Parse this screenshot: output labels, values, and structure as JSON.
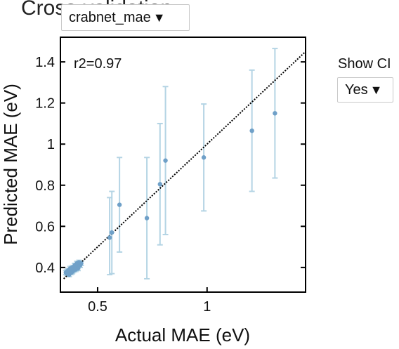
{
  "title": "Cross-validation",
  "metric_select": {
    "value": "crabnet_mae"
  },
  "ci_control": {
    "label": "Show CI",
    "value": "Yes"
  },
  "colors": {
    "points": "#6fa0c8",
    "errorbars": "#b4d4e4",
    "parity": "#000000"
  },
  "chart_data": {
    "type": "scatter",
    "xlabel": "Actual MAE (eV)",
    "ylabel": "Predicted MAE (eV)",
    "annotation": "r2=0.97",
    "xlim": [
      0.33,
      1.45
    ],
    "ylim": [
      0.28,
      1.52
    ],
    "xticks": [
      0.5,
      1
    ],
    "xtick_labels": [
      "0.5",
      "1"
    ],
    "yticks": [
      0.4,
      0.6,
      0.8,
      1.0,
      1.2,
      1.4
    ],
    "ytick_labels": [
      "0.4",
      "0.6",
      "0.8",
      "1",
      "1.2",
      "1.4"
    ],
    "grid": false,
    "parity_line": true,
    "points": [
      {
        "x": 0.555,
        "y": 0.545,
        "lo": 0.365,
        "hi": 0.74
      },
      {
        "x": 0.565,
        "y": 0.57,
        "lo": 0.37,
        "hi": 0.77
      },
      {
        "x": 0.6,
        "y": 0.705,
        "lo": 0.475,
        "hi": 0.935
      },
      {
        "x": 0.725,
        "y": 0.64,
        "lo": 0.345,
        "hi": 0.935
      },
      {
        "x": 0.785,
        "y": 0.805,
        "lo": 0.51,
        "hi": 1.1
      },
      {
        "x": 0.81,
        "y": 0.92,
        "lo": 0.56,
        "hi": 1.28
      },
      {
        "x": 0.985,
        "y": 0.935,
        "lo": 0.675,
        "hi": 1.195
      },
      {
        "x": 1.205,
        "y": 1.065,
        "lo": 0.77,
        "hi": 1.36
      },
      {
        "x": 1.31,
        "y": 1.15,
        "lo": 0.835,
        "hi": 1.465
      },
      {
        "x": 0.36,
        "y": 0.37,
        "lo": 0.36,
        "hi": 0.38
      },
      {
        "x": 0.365,
        "y": 0.375,
        "lo": 0.365,
        "hi": 0.385
      },
      {
        "x": 0.37,
        "y": 0.38,
        "lo": 0.37,
        "hi": 0.39
      },
      {
        "x": 0.375,
        "y": 0.385,
        "lo": 0.375,
        "hi": 0.395
      },
      {
        "x": 0.38,
        "y": 0.39,
        "lo": 0.38,
        "hi": 0.4
      },
      {
        "x": 0.385,
        "y": 0.38,
        "lo": 0.37,
        "hi": 0.39
      },
      {
        "x": 0.39,
        "y": 0.395,
        "lo": 0.385,
        "hi": 0.405
      },
      {
        "x": 0.395,
        "y": 0.4,
        "lo": 0.39,
        "hi": 0.41
      },
      {
        "x": 0.4,
        "y": 0.405,
        "lo": 0.395,
        "hi": 0.415
      },
      {
        "x": 0.405,
        "y": 0.41,
        "lo": 0.4,
        "hi": 0.42
      },
      {
        "x": 0.41,
        "y": 0.405,
        "lo": 0.395,
        "hi": 0.415
      },
      {
        "x": 0.415,
        "y": 0.415,
        "lo": 0.405,
        "hi": 0.425
      },
      {
        "x": 0.42,
        "y": 0.41,
        "lo": 0.4,
        "hi": 0.42
      },
      {
        "x": 0.425,
        "y": 0.42,
        "lo": 0.41,
        "hi": 0.43
      },
      {
        "x": 0.37,
        "y": 0.365,
        "lo": 0.355,
        "hi": 0.375
      },
      {
        "x": 0.38,
        "y": 0.375,
        "lo": 0.365,
        "hi": 0.385
      },
      {
        "x": 0.39,
        "y": 0.385,
        "lo": 0.375,
        "hi": 0.395
      },
      {
        "x": 0.4,
        "y": 0.39,
        "lo": 0.38,
        "hi": 0.4
      },
      {
        "x": 0.41,
        "y": 0.395,
        "lo": 0.385,
        "hi": 0.405
      },
      {
        "x": 0.365,
        "y": 0.385,
        "lo": 0.375,
        "hi": 0.395
      },
      {
        "x": 0.375,
        "y": 0.395,
        "lo": 0.385,
        "hi": 0.405
      },
      {
        "x": 0.385,
        "y": 0.4,
        "lo": 0.39,
        "hi": 0.41
      },
      {
        "x": 0.395,
        "y": 0.41,
        "lo": 0.4,
        "hi": 0.42
      },
      {
        "x": 0.405,
        "y": 0.42,
        "lo": 0.41,
        "hi": 0.43
      },
      {
        "x": 0.415,
        "y": 0.425,
        "lo": 0.415,
        "hi": 0.435
      },
      {
        "x": 0.355,
        "y": 0.375,
        "lo": 0.365,
        "hi": 0.385
      },
      {
        "x": 0.36,
        "y": 0.38,
        "lo": 0.37,
        "hi": 0.39
      }
    ]
  }
}
